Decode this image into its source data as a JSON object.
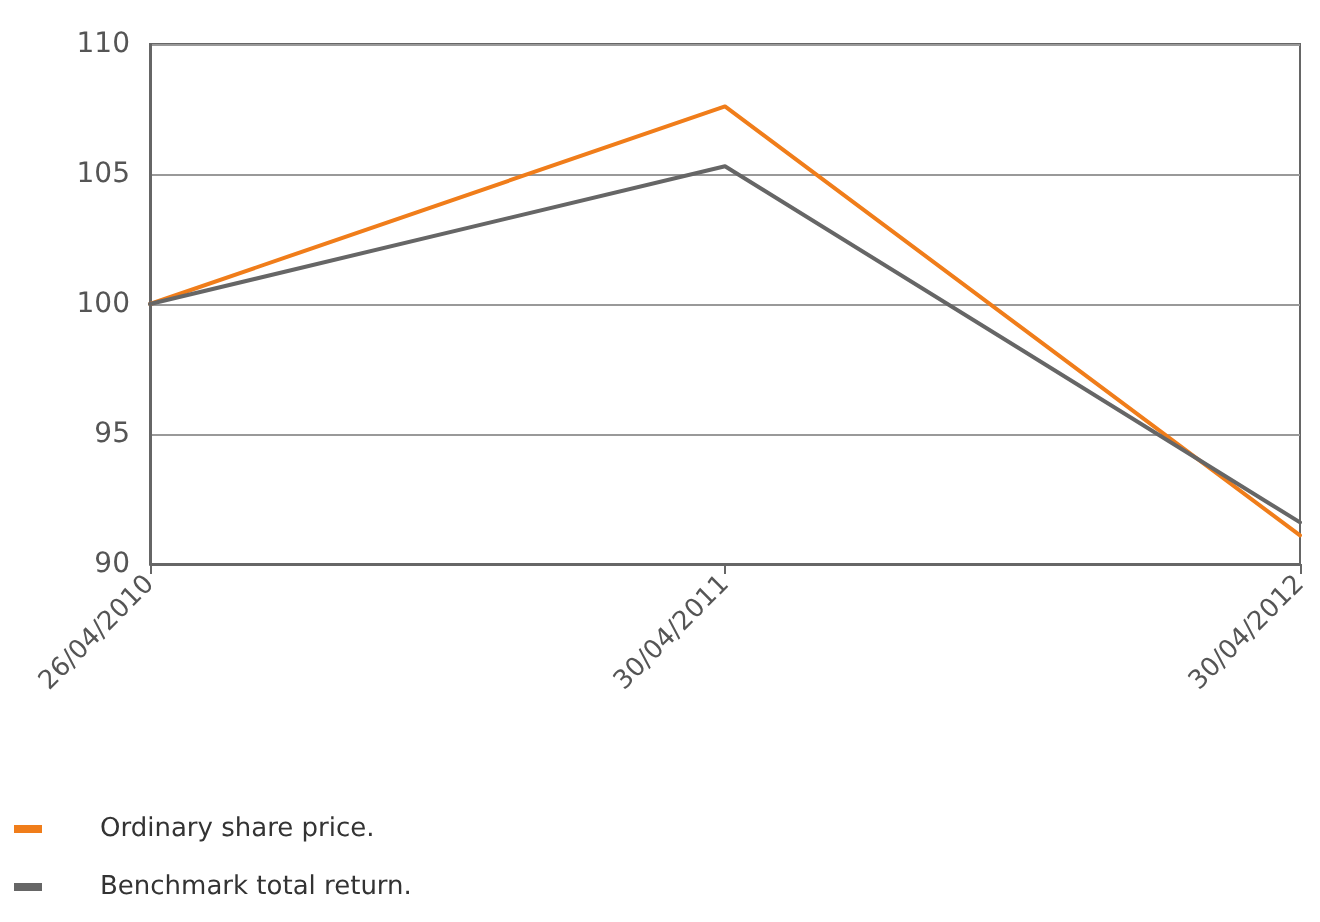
{
  "chart_data": {
    "type": "line",
    "categories": [
      "26/04/2010",
      "30/04/2011",
      "30/04/2012"
    ],
    "series": [
      {
        "name": "Ordinary share price.",
        "color": "#f07d1a",
        "values": [
          100,
          107.6,
          91.1
        ]
      },
      {
        "name": "Benchmark total return.",
        "color": "#666666",
        "values": [
          100,
          105.3,
          91.6
        ]
      }
    ],
    "ylim": [
      90,
      110
    ],
    "yticks": [
      90,
      95,
      100,
      105,
      110
    ],
    "grid": "y",
    "legend": "bottom left",
    "marker": "none",
    "line_style": "solid"
  }
}
